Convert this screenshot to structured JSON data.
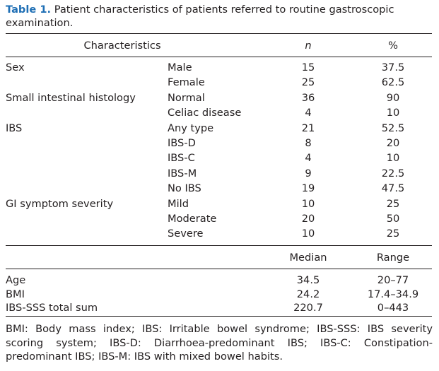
{
  "caption": {
    "label": "Table 1.",
    "text": "Patient characteristics of patients referred to routine gastroscopic examination."
  },
  "header": {
    "characteristics": "Characteristics",
    "n": "n",
    "pct": "%"
  },
  "rows": [
    {
      "char": "Sex",
      "sub": "Male",
      "n": "15",
      "pct": "37.5"
    },
    {
      "char": "",
      "sub": "Female",
      "n": "25",
      "pct": "62.5"
    },
    {
      "char": "Small intestinal histology",
      "sub": "Normal",
      "n": "36",
      "pct": "90"
    },
    {
      "char": "",
      "sub": "Celiac disease",
      "n": "4",
      "pct": "10"
    },
    {
      "char": "IBS",
      "sub": "Any type",
      "n": "21",
      "pct": "52.5"
    },
    {
      "char": "",
      "sub": "IBS-D",
      "n": "8",
      "pct": "20"
    },
    {
      "char": "",
      "sub": "IBS-C",
      "n": "4",
      "pct": "10"
    },
    {
      "char": "",
      "sub": "IBS-M",
      "n": "9",
      "pct": "22.5"
    },
    {
      "char": "",
      "sub": "No IBS",
      "n": "19",
      "pct": "47.5"
    },
    {
      "char": "GI symptom severity",
      "sub": "Mild",
      "n": "10",
      "pct": "25"
    },
    {
      "char": "",
      "sub": "Moderate",
      "n": "20",
      "pct": "50"
    },
    {
      "char": "",
      "sub": "Severe",
      "n": "10",
      "pct": "25"
    }
  ],
  "header2": {
    "median": "Median",
    "range": "Range"
  },
  "rows2": [
    {
      "char": "Age",
      "median": "34.5",
      "range": "20–77"
    },
    {
      "char": "BMI",
      "median": "24.2",
      "range": "17.4–34.9"
    },
    {
      "char": "IBS-SSS total sum",
      "median": "220.7",
      "range": "0–443"
    }
  ],
  "footnote": "BMI: Body mass index; IBS: Irritable bowel syndrome; IBS-SSS: IBS severity scoring system; IBS-D: Diarrhoea-predominant IBS; IBS-C: Constipation-predominant IBS; IBS-M: IBS with mixed bowel habits."
}
